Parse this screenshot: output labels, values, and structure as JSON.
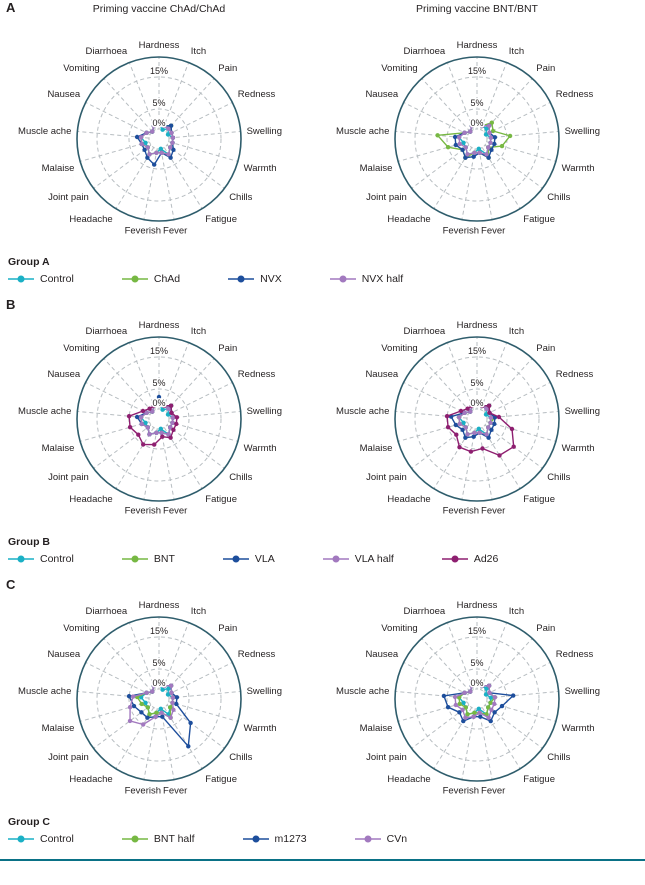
{
  "figure": {
    "axes": [
      "Hardness",
      "Itch",
      "Pain",
      "Redness",
      "Swelling",
      "Warmth",
      "Chills",
      "Fatigue",
      "Fever",
      "Feverish",
      "Headache",
      "Joint pain",
      "Malaise",
      "Muscle ache",
      "Nausea",
      "Vomiting",
      "Diarrhoea"
    ],
    "ring_labels": [
      "15%",
      "5%",
      "0%"
    ],
    "ring_values": [
      15,
      5,
      0
    ],
    "unit": "%",
    "colors": {
      "outline": "#2f5d6c",
      "grid": "#b7bdc1",
      "text": "#231f20",
      "rule": "#0a7186",
      "control": "#1ab0c5",
      "green": "#77b843",
      "blue": "#1d4e9c",
      "lilac": "#a279bf",
      "magenta": "#8e1f70"
    }
  },
  "panels": [
    {
      "label": "A",
      "legend_title": "Group A",
      "chart_indexes": [
        0,
        1
      ],
      "legend": [
        {
          "label": "Control",
          "color": "#1ab0c5"
        },
        {
          "label": "ChAd",
          "color": "#77b843"
        },
        {
          "label": "NVX",
          "color": "#1d4e9c"
        },
        {
          "label": "NVX half",
          "color": "#a279bf"
        }
      ]
    },
    {
      "label": "B",
      "legend_title": "Group B",
      "chart_indexes": [
        2,
        3
      ],
      "legend": [
        {
          "label": "Control",
          "color": "#1ab0c5"
        },
        {
          "label": "BNT",
          "color": "#77b843"
        },
        {
          "label": "VLA",
          "color": "#1d4e9c"
        },
        {
          "label": "VLA half",
          "color": "#a279bf"
        },
        {
          "label": "Ad26",
          "color": "#8e1f70"
        }
      ]
    },
    {
      "label": "C",
      "legend_title": "Group C",
      "chart_indexes": [
        4,
        5
      ],
      "legend": [
        {
          "label": "Control",
          "color": "#1ab0c5"
        },
        {
          "label": "BNT half",
          "color": "#77b843"
        },
        {
          "label": "m1273",
          "color": "#1d4e9c"
        },
        {
          "label": "CVn",
          "color": "#a279bf"
        }
      ]
    }
  ],
  "chart_data": [
    {
      "type": "radar",
      "panel": "A",
      "title": "Priming vaccine ChAd/ChAd",
      "rings": [
        0,
        5,
        15
      ],
      "unit": "%",
      "series": [
        {
          "name": "Control",
          "color": "#1ab0c5",
          "values": [
            1,
            0,
            1,
            0,
            1,
            1,
            1,
            2,
            0,
            1,
            2,
            1,
            1,
            2,
            1,
            0,
            1
          ]
        },
        {
          "name": "ChAd",
          "color": "#77b843",
          "values": [
            1,
            1,
            2,
            1,
            1,
            1,
            1,
            2,
            1,
            1,
            2,
            1,
            2,
            2,
            1,
            0,
            1
          ]
        },
        {
          "name": "NVX",
          "color": "#1d4e9c",
          "values": [
            2,
            1,
            2,
            1,
            1,
            1,
            2,
            3,
            1,
            4,
            3,
            2,
            2,
            3,
            1,
            0,
            1
          ]
        },
        {
          "name": "NVX half",
          "color": "#a279bf",
          "values": [
            2,
            1,
            1,
            1,
            1,
            1,
            1,
            2,
            1,
            1,
            2,
            1,
            2,
            2,
            1,
            0,
            1
          ]
        }
      ]
    },
    {
      "type": "radar",
      "panel": "A",
      "title": "Priming vaccine BNT/BNT",
      "rings": [
        0,
        5,
        15
      ],
      "unit": "%",
      "series": [
        {
          "name": "Control",
          "color": "#1ab0c5",
          "values": [
            1,
            1,
            1,
            0,
            1,
            1,
            1,
            2,
            0,
            1,
            2,
            1,
            1,
            2,
            1,
            0,
            1
          ]
        },
        {
          "name": "ChAd",
          "color": "#77b843",
          "values": [
            2,
            1,
            3,
            2,
            6,
            4,
            1,
            3,
            1,
            1,
            3,
            2,
            5,
            8,
            1,
            0,
            1
          ]
        },
        {
          "name": "NVX",
          "color": "#1d4e9c",
          "values": [
            2,
            1,
            2,
            1,
            2,
            2,
            2,
            3,
            1,
            2,
            3,
            2,
            3,
            3,
            1,
            0,
            1
          ]
        },
        {
          "name": "NVX half",
          "color": "#a279bf",
          "values": [
            2,
            1,
            2,
            1,
            1,
            1,
            1,
            2,
            1,
            1,
            2,
            1,
            2,
            2,
            1,
            0,
            1
          ]
        }
      ]
    },
    {
      "type": "radar",
      "panel": "B",
      "title": "",
      "rings": [
        0,
        5,
        15
      ],
      "unit": "%",
      "series": [
        {
          "name": "Control",
          "color": "#1ab0c5",
          "values": [
            1,
            0,
            1,
            0,
            1,
            1,
            1,
            2,
            0,
            1,
            2,
            1,
            1,
            2,
            1,
            0,
            1
          ]
        },
        {
          "name": "BNT",
          "color": "#77b843",
          "values": [
            1,
            1,
            2,
            1,
            1,
            1,
            1,
            2,
            1,
            1,
            2,
            1,
            2,
            2,
            1,
            0,
            1
          ]
        },
        {
          "name": "VLA",
          "color": "#1d4e9c",
          "values": [
            3,
            1,
            2,
            1,
            1,
            1,
            1,
            2,
            1,
            1,
            2,
            1,
            2,
            3,
            1,
            0,
            1
          ]
        },
        {
          "name": "VLA half",
          "color": "#a279bf",
          "values": [
            2,
            1,
            1,
            1,
            1,
            1,
            1,
            2,
            1,
            1,
            2,
            1,
            2,
            2,
            1,
            0,
            1
          ]
        },
        {
          "name": "Ad26",
          "color": "#8e1f70",
          "values": [
            2,
            1,
            2,
            1,
            2,
            2,
            2,
            3,
            2,
            4,
            5,
            4,
            5,
            5,
            2,
            1,
            1
          ]
        }
      ]
    },
    {
      "type": "radar",
      "panel": "B",
      "title": "",
      "rings": [
        0,
        5,
        15
      ],
      "unit": "%",
      "series": [
        {
          "name": "Control",
          "color": "#1ab0c5",
          "values": [
            1,
            1,
            1,
            0,
            1,
            1,
            1,
            2,
            0,
            1,
            2,
            1,
            1,
            2,
            1,
            0,
            1
          ]
        },
        {
          "name": "BNT",
          "color": "#77b843",
          "values": [
            1,
            1,
            2,
            1,
            2,
            1,
            1,
            2,
            1,
            1,
            2,
            1,
            2,
            2,
            1,
            0,
            1
          ]
        },
        {
          "name": "VLA",
          "color": "#1d4e9c",
          "values": [
            2,
            1,
            2,
            1,
            2,
            2,
            2,
            3,
            1,
            2,
            3,
            2,
            3,
            4,
            1,
            0,
            1
          ]
        },
        {
          "name": "VLA half",
          "color": "#a279bf",
          "values": [
            2,
            1,
            1,
            1,
            1,
            1,
            1,
            2,
            1,
            1,
            2,
            1,
            2,
            2,
            1,
            0,
            1
          ]
        },
        {
          "name": "Ad26",
          "color": "#8e1f70",
          "values": [
            2,
            1,
            2,
            1,
            3,
            7,
            10,
            9,
            5,
            6,
            6,
            4,
            5,
            5,
            2,
            1,
            1
          ]
        }
      ]
    },
    {
      "type": "radar",
      "panel": "C",
      "title": "",
      "rings": [
        0,
        5,
        15
      ],
      "unit": "%",
      "series": [
        {
          "name": "Control",
          "color": "#1ab0c5",
          "values": [
            1,
            0,
            1,
            0,
            1,
            1,
            1,
            2,
            0,
            1,
            2,
            1,
            1,
            2,
            1,
            0,
            1
          ]
        },
        {
          "name": "BNT half",
          "color": "#77b843",
          "values": [
            1,
            1,
            2,
            1,
            1,
            1,
            1,
            3,
            1,
            1,
            2,
            1,
            2,
            3,
            1,
            0,
            1
          ]
        },
        {
          "name": "m1273",
          "color": "#1d4e9c",
          "values": [
            2,
            1,
            2,
            1,
            2,
            2,
            8,
            13,
            2,
            2,
            3,
            3,
            4,
            5,
            1,
            0,
            1
          ]
        },
        {
          "name": "CVn",
          "color": "#a279bf",
          "values": [
            2,
            1,
            2,
            1,
            1,
            1,
            2,
            3,
            1,
            2,
            5,
            7,
            5,
            4,
            1,
            0,
            1
          ]
        }
      ]
    },
    {
      "type": "radar",
      "panel": "C",
      "title": "",
      "rings": [
        0,
        5,
        15
      ],
      "unit": "%",
      "series": [
        {
          "name": "Control",
          "color": "#1ab0c5",
          "values": [
            1,
            1,
            1,
            0,
            1,
            1,
            1,
            2,
            0,
            1,
            2,
            1,
            1,
            2,
            1,
            0,
            1
          ]
        },
        {
          "name": "BNT half",
          "color": "#77b843",
          "values": [
            1,
            1,
            2,
            1,
            2,
            1,
            1,
            2,
            1,
            1,
            2,
            1,
            2,
            2,
            1,
            0,
            1
          ]
        },
        {
          "name": "m1273",
          "color": "#1d4e9c",
          "values": [
            2,
            1,
            2,
            1,
            7,
            4,
            3,
            4,
            2,
            2,
            4,
            3,
            5,
            6,
            1,
            0,
            1
          ]
        },
        {
          "name": "CVn",
          "color": "#a279bf",
          "values": [
            2,
            1,
            2,
            1,
            2,
            2,
            2,
            3,
            1,
            2,
            3,
            2,
            3,
            3,
            1,
            0,
            1
          ]
        }
      ]
    }
  ]
}
